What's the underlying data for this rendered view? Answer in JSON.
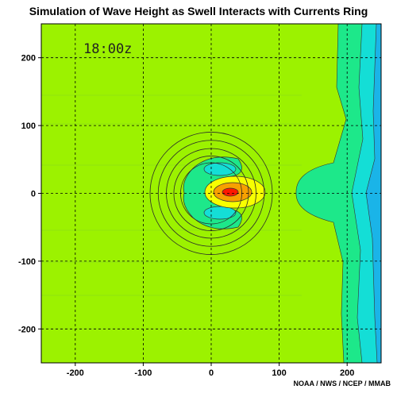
{
  "chart_data": {
    "type": "heatmap",
    "title": "Simulation of Wave Height as Swell Interacts with Currents Ring",
    "time_label": "18:00z",
    "credit": "NOAA / NWS / NCEP / MMAB",
    "xlim": [
      -250,
      250
    ],
    "ylim": [
      -250,
      250
    ],
    "x_ticks": [
      -200,
      -100,
      0,
      100,
      200
    ],
    "y_ticks": [
      -200,
      -100,
      0,
      100,
      200
    ],
    "grid": "dashed",
    "colors": {
      "background": "#9cf200",
      "level_aqua": "#1de88a",
      "level_cyan": "#14ded6",
      "level_blue": "#1ab4e8",
      "level_yellow": "#f7ff00",
      "level_orange": "#f7a000",
      "level_red": "#ff1800"
    },
    "current_ring": {
      "center": [
        0,
        0
      ],
      "radii": [
        45,
        55,
        66,
        78,
        90
      ]
    }
  }
}
